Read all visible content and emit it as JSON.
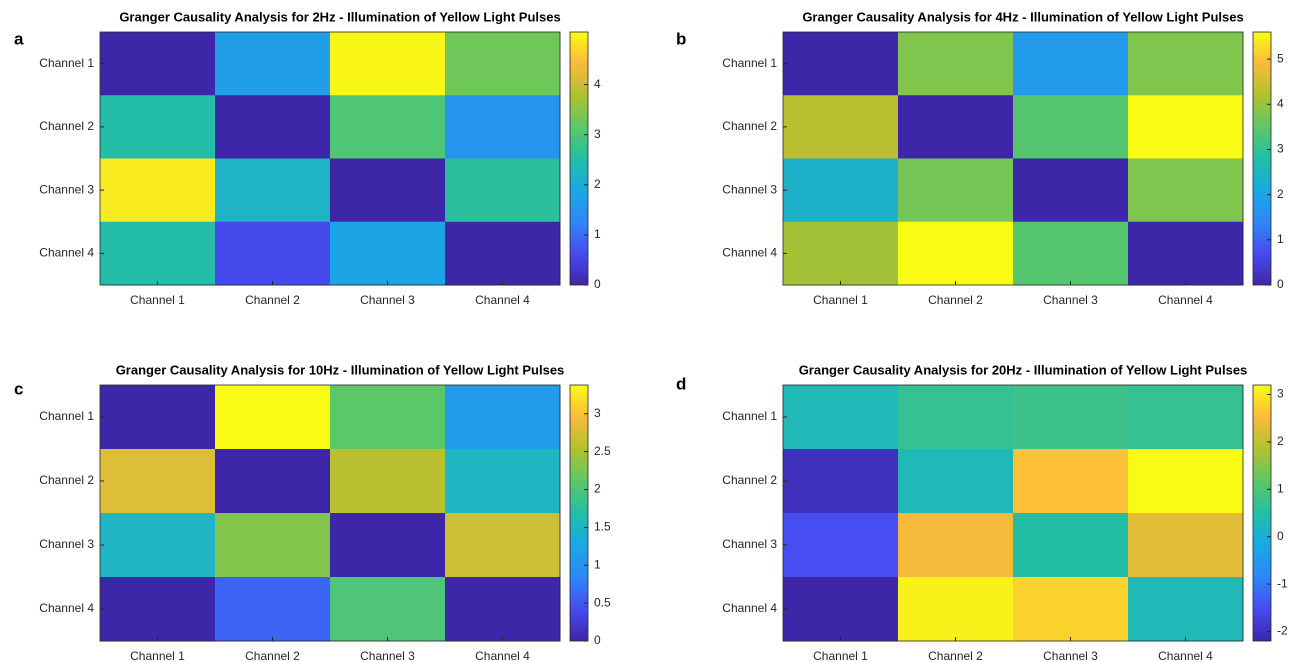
{
  "chart_data": [
    {
      "type": "heatmap",
      "label": "a",
      "title": "Granger Causality Analysis for 2Hz - Illumination of Yellow Light Pulses",
      "x_categories": [
        "Channel 1",
        "Channel 2",
        "Channel 3",
        "Channel 4"
      ],
      "y_categories": [
        "Channel 1",
        "Channel 2",
        "Channel 3",
        "Channel 4"
      ],
      "values": [
        [
          0,
          1.7,
          5,
          3.3
        ],
        [
          2.5,
          0,
          3.0,
          1.5
        ],
        [
          4.9,
          2.2,
          0,
          2.6
        ],
        [
          2.5,
          0.6,
          1.8,
          0
        ]
      ],
      "zlim": [
        0,
        5.05
      ],
      "zticks": [
        0,
        1,
        2,
        3,
        4
      ]
    },
    {
      "type": "heatmap",
      "label": "b",
      "title": "Granger Causality Analysis for 4Hz - Illumination of Yellow Light Pulses",
      "x_categories": [
        "Channel 1",
        "Channel 2",
        "Channel 3",
        "Channel 4"
      ],
      "y_categories": [
        "Channel 1",
        "Channel 2",
        "Channel 3",
        "Channel 4"
      ],
      "values": [
        [
          0,
          3.8,
          1.8,
          3.8
        ],
        [
          4.3,
          0,
          3.4,
          5.6
        ],
        [
          2.4,
          3.7,
          0,
          3.8
        ],
        [
          4.1,
          5.6,
          3.4,
          0
        ]
      ],
      "zlim": [
        0,
        5.6
      ],
      "zticks": [
        0,
        1,
        2,
        3,
        4,
        5
      ]
    },
    {
      "type": "heatmap",
      "label": "c",
      "title": "Granger Causality Analysis for 10Hz - Illumination of Yellow Light Pulses",
      "x_categories": [
        "Channel 1",
        "Channel 2",
        "Channel 3",
        "Channel 4"
      ],
      "y_categories": [
        "Channel 1",
        "Channel 2",
        "Channel 3",
        "Channel 4"
      ],
      "values": [
        [
          0,
          3.38,
          2.1,
          1.1
        ],
        [
          2.8,
          0,
          2.6,
          1.5
        ],
        [
          1.5,
          2.3,
          0,
          2.7
        ],
        [
          0,
          0.6,
          2.0,
          0
        ]
      ],
      "zlim": [
        0,
        3.38
      ],
      "zticks": [
        0,
        0.5,
        1,
        1.5,
        2,
        2.5,
        3
      ]
    },
    {
      "type": "heatmap",
      "label": "d",
      "title": "Granger Causality Analysis for 20Hz - Illumination of Yellow Light Pulses",
      "x_categories": [
        "Channel 1",
        "Channel 2",
        "Channel 3",
        "Channel 4"
      ],
      "y_categories": [
        "Channel 1",
        "Channel 2",
        "Channel 3",
        "Channel 4"
      ],
      "values": [
        [
          0.3,
          0.7,
          0.8,
          0.7
        ],
        [
          -2.0,
          0.3,
          2.6,
          3.2
        ],
        [
          -1.5,
          2.5,
          0.5,
          2.3
        ],
        [
          -2.2,
          3.1,
          2.8,
          0.3
        ]
      ],
      "zlim": [
        -2.2,
        3.2
      ],
      "zticks": [
        -2,
        -1,
        0,
        1,
        2,
        3
      ]
    }
  ]
}
